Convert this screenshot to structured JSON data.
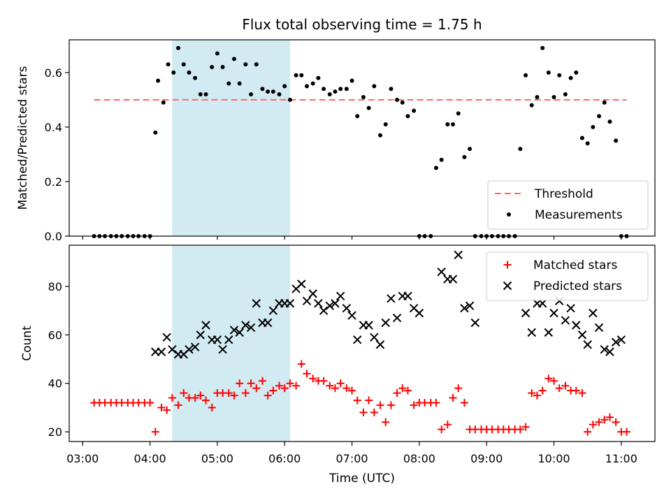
{
  "chart_data": {
    "type": "scatter",
    "title": "Flux total observing time = 1.75 h",
    "xlabel": "Time (UTC)",
    "xticks": [
      "03:00",
      "04:00",
      "05:00",
      "06:00",
      "07:00",
      "08:00",
      "09:00",
      "10:00",
      "11:00"
    ],
    "xlim": [
      2.8,
      11.5
    ],
    "shaded_interval": [
      4.33,
      6.08
    ],
    "shade_color": "#add8e6",
    "panels": [
      {
        "ylabel": "Matched/Predicted stars",
        "ylim": [
          0,
          0.72
        ],
        "yticks": [
          0.0,
          0.2,
          0.4,
          0.6
        ],
        "threshold": {
          "name": "Threshold",
          "value": 0.5,
          "color": "#ff6666"
        },
        "series": [
          {
            "name": "Measurements",
            "color": "#000000",
            "marker": "dot",
            "x": [
              3.17,
              3.25,
              3.33,
              3.42,
              3.5,
              3.58,
              3.67,
              3.75,
              3.83,
              3.92,
              4.0,
              4.08,
              4.12,
              4.2,
              4.27,
              4.35,
              4.42,
              4.5,
              4.58,
              4.67,
              4.75,
              4.83,
              4.92,
              5.0,
              5.08,
              5.17,
              5.25,
              5.33,
              5.42,
              5.5,
              5.58,
              5.67,
              5.75,
              5.83,
              5.92,
              6.0,
              6.08,
              6.17,
              6.25,
              6.33,
              6.42,
              6.5,
              6.58,
              6.67,
              6.75,
              6.83,
              6.92,
              7.0,
              7.08,
              7.17,
              7.25,
              7.33,
              7.42,
              7.5,
              7.58,
              7.67,
              7.75,
              7.83,
              7.92,
              8.0,
              8.08,
              8.17,
              8.25,
              8.33,
              8.42,
              8.5,
              8.58,
              8.67,
              8.75,
              8.83,
              8.92,
              9.0,
              9.08,
              9.17,
              9.25,
              9.33,
              9.42,
              9.5,
              9.58,
              9.67,
              9.75,
              9.83,
              9.92,
              10.0,
              10.08,
              10.17,
              10.25,
              10.33,
              10.42,
              10.5,
              10.58,
              10.67,
              10.75,
              10.83,
              10.92,
              11.0,
              11.08
            ],
            "y": [
              0,
              0,
              0,
              0,
              0,
              0,
              0,
              0,
              0,
              0,
              0,
              0.38,
              0.57,
              0.49,
              0.63,
              0.6,
              0.69,
              0.63,
              0.6,
              0.58,
              0.52,
              0.52,
              0.62,
              0.67,
              0.62,
              0.56,
              0.65,
              0.56,
              0.63,
              0.52,
              0.63,
              0.54,
              0.53,
              0.53,
              0.52,
              0.55,
              0.5,
              0.59,
              0.59,
              0.55,
              0.56,
              0.58,
              0.54,
              0.52,
              0.53,
              0.54,
              0.54,
              0.57,
              0.44,
              0.51,
              0.47,
              0.55,
              0.37,
              0.41,
              0.54,
              0.5,
              0.49,
              0.44,
              0.46,
              0,
              0,
              0,
              0.25,
              0.28,
              0.41,
              0.41,
              0.45,
              0.29,
              0.32,
              0,
              0,
              0,
              0,
              0,
              0,
              0,
              0,
              0.32,
              0.59,
              0.48,
              0.51,
              0.69,
              0.6,
              0.51,
              0.59,
              0.52,
              0.58,
              0.6,
              0.36,
              0.34,
              0.4,
              0.44,
              0.49,
              0.42,
              0.35,
              0,
              0
            ]
          }
        ],
        "legend": {
          "position": "lower right",
          "items": [
            "Threshold",
            "Measurements"
          ]
        }
      },
      {
        "ylabel": "Count",
        "ylim": [
          16,
          97
        ],
        "yticks": [
          20,
          40,
          60,
          80
        ],
        "series": [
          {
            "name": "Matched stars",
            "color": "#ff0000",
            "marker": "plus",
            "x": [
              3.17,
              3.25,
              3.33,
              3.42,
              3.5,
              3.58,
              3.67,
              3.75,
              3.83,
              3.92,
              4.0,
              4.08,
              4.17,
              4.25,
              4.33,
              4.42,
              4.5,
              4.58,
              4.67,
              4.75,
              4.83,
              4.92,
              5.0,
              5.08,
              5.17,
              5.25,
              5.33,
              5.42,
              5.5,
              5.58,
              5.67,
              5.75,
              5.83,
              5.92,
              6.0,
              6.08,
              6.17,
              6.25,
              6.33,
              6.42,
              6.5,
              6.58,
              6.67,
              6.75,
              6.83,
              6.92,
              7.0,
              7.08,
              7.17,
              7.25,
              7.33,
              7.42,
              7.5,
              7.58,
              7.67,
              7.75,
              7.83,
              7.92,
              8.0,
              8.08,
              8.17,
              8.25,
              8.33,
              8.42,
              8.5,
              8.58,
              8.67,
              8.75,
              8.83,
              8.92,
              9.0,
              9.08,
              9.17,
              9.25,
              9.33,
              9.42,
              9.5,
              9.58,
              9.67,
              9.75,
              9.83,
              9.92,
              10.0,
              10.08,
              10.17,
              10.25,
              10.33,
              10.42,
              10.5,
              10.58,
              10.67,
              10.75,
              10.83,
              10.92,
              11.0,
              11.08
            ],
            "y": [
              32,
              32,
              32,
              32,
              32,
              32,
              32,
              32,
              32,
              32,
              32,
              20,
              30,
              29,
              34,
              31,
              36,
              34,
              34,
              35,
              33,
              30,
              36,
              36,
              36,
              35,
              40,
              36,
              40,
              38,
              41,
              35,
              37,
              39,
              38,
              40,
              39,
              48,
              44,
              42,
              41,
              41,
              39,
              38,
              40,
              38,
              37,
              33,
              28,
              33,
              28,
              31,
              24,
              31,
              36,
              38,
              37,
              31,
              32,
              32,
              32,
              32,
              21,
              23,
              34,
              38,
              32,
              21,
              21,
              21,
              21,
              21,
              21,
              21,
              21,
              21,
              21,
              22,
              36,
              35,
              37,
              42,
              41,
              38,
              39,
              37,
              37,
              36,
              20,
              23,
              24,
              25,
              26,
              24,
              20,
              20
            ]
          },
          {
            "name": "Predicted stars",
            "color": "#000000",
            "marker": "cross",
            "x": [
              4.08,
              4.17,
              4.25,
              4.33,
              4.42,
              4.5,
              4.58,
              4.67,
              4.75,
              4.83,
              4.92,
              5.0,
              5.08,
              5.17,
              5.25,
              5.33,
              5.42,
              5.5,
              5.58,
              5.67,
              5.75,
              5.83,
              5.92,
              6.0,
              6.08,
              6.17,
              6.25,
              6.33,
              6.42,
              6.5,
              6.58,
              6.67,
              6.75,
              6.83,
              6.92,
              7.0,
              7.08,
              7.17,
              7.25,
              7.33,
              7.42,
              7.5,
              7.58,
              7.67,
              7.75,
              7.83,
              7.92,
              8.0,
              8.33,
              8.42,
              8.5,
              8.58,
              8.67,
              8.75,
              8.83,
              9.58,
              9.67,
              9.75,
              9.83,
              9.92,
              10.0,
              10.08,
              10.17,
              10.25,
              10.33,
              10.42,
              10.5,
              10.58,
              10.67,
              10.75,
              10.83,
              10.92,
              11.0
            ],
            "y": [
              53,
              53,
              59,
              54,
              52,
              52,
              54,
              55,
              60,
              64,
              58,
              58,
              54,
              58,
              62,
              61,
              64,
              63,
              73,
              65,
              65,
              70,
              73,
              73,
              73,
              79,
              81,
              74,
              77,
              73,
              70,
              72,
              73,
              76,
              71,
              68,
              58,
              64,
              64,
              59,
              56,
              65,
              75,
              67,
              76,
              76,
              71,
              69,
              86,
              83,
              83,
              93,
              71,
              72,
              65,
              69,
              61,
              73,
              73,
              61,
              69,
              74,
              66,
              71,
              64,
              60,
              56,
              69,
              63,
              54,
              53,
              57,
              58
            ]
          }
        ],
        "legend": {
          "position": "upper right",
          "items": [
            "Matched stars",
            "Predicted stars"
          ]
        }
      }
    ]
  }
}
